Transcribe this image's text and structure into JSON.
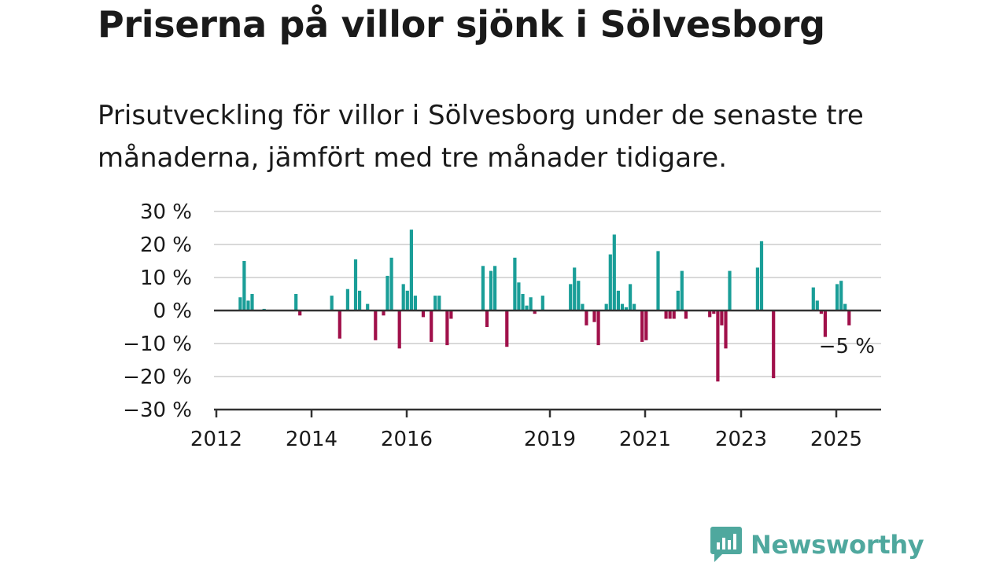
{
  "title": "Priserna på villor sjönk i Sölvesborg",
  "subtitle": "Prisutveckling för villor i Sölvesborg under de senaste tre månaderna, jämfört med tre månader tidigare.",
  "brand": {
    "name": "Newsworthy",
    "color": "#4fa89e",
    "icon": "newsworthy-chart-bubble-icon"
  },
  "colors": {
    "positive": "#1a9e98",
    "negative": "#a0104a",
    "grid": "#d9d9d9",
    "axis": "#333333"
  },
  "chart_data": {
    "type": "bar",
    "title": "",
    "xlabel": "",
    "ylabel": "",
    "ylim": [
      -30,
      30
    ],
    "y_ticks": [
      30,
      20,
      10,
      0,
      -10,
      -20,
      -30
    ],
    "y_tick_labels": [
      "30 %",
      "20 %",
      "10 %",
      "0 %",
      "−10 %",
      "−20 %",
      "−30 %"
    ],
    "x_ticks": [
      2012,
      2014,
      2016,
      2019,
      2021,
      2023,
      2025
    ],
    "x_tick_labels": [
      "2012",
      "2014",
      "2016",
      "2019",
      "2021",
      "2023",
      "2025"
    ],
    "xlim": [
      "2012-01",
      "2025-12"
    ],
    "grid": true,
    "annotation": {
      "text": "−5 %",
      "x": "2025-04",
      "value": -5
    },
    "x": [
      "2012-07",
      "2012-08",
      "2012-09",
      "2012-10",
      "2013-01",
      "2013-09",
      "2013-10",
      "2014-06",
      "2014-08",
      "2014-10",
      "2014-12",
      "2015-01",
      "2015-03",
      "2015-05",
      "2015-07",
      "2015-08",
      "2015-09",
      "2015-11",
      "2015-12",
      "2016-01",
      "2016-02",
      "2016-03",
      "2016-05",
      "2016-07",
      "2016-08",
      "2016-09",
      "2016-11",
      "2016-12",
      "2017-08",
      "2017-09",
      "2017-10",
      "2017-11",
      "2018-02",
      "2018-04",
      "2018-05",
      "2018-06",
      "2018-07",
      "2018-08",
      "2018-09",
      "2018-11",
      "2019-06",
      "2019-07",
      "2019-08",
      "2019-09",
      "2019-10",
      "2019-12",
      "2020-01",
      "2020-03",
      "2020-04",
      "2020-05",
      "2020-06",
      "2020-07",
      "2020-08",
      "2020-09",
      "2020-10",
      "2020-12",
      "2021-01",
      "2021-04",
      "2021-06",
      "2021-07",
      "2021-08",
      "2021-09",
      "2021-10",
      "2021-11",
      "2022-05",
      "2022-06",
      "2022-07",
      "2022-08",
      "2022-09",
      "2022-10",
      "2023-05",
      "2023-06",
      "2023-09",
      "2024-07",
      "2024-08",
      "2024-09",
      "2024-10",
      "2025-01",
      "2025-02",
      "2025-03",
      "2025-04"
    ],
    "series": [
      {
        "values": [
          4,
          15,
          3,
          5,
          0.5,
          5,
          -1.5,
          4.5,
          -8.5,
          6.5,
          15.5,
          6,
          2,
          -9,
          -1.5,
          10.5,
          16,
          -11.5,
          8,
          6,
          24.5,
          4.5,
          -2,
          -9.5,
          4.5,
          4.5,
          -10.5,
          -2.5,
          13.5,
          -5,
          12,
          13.5,
          -11,
          16,
          8.5,
          5,
          1.5,
          4,
          -1,
          4.5,
          8,
          13,
          9,
          2,
          -4.5,
          -3.5,
          -10.5,
          2,
          17,
          23,
          6,
          2,
          1,
          8,
          2,
          -9.5,
          -9,
          18,
          -2.5,
          -2.5,
          -2.5,
          6,
          12,
          -2.5,
          -2,
          -1,
          -21.5,
          -4.5,
          -11.5,
          12,
          13,
          21,
          -20.5,
          7,
          3,
          -1,
          -8,
          8,
          9,
          2,
          -4.5
        ]
      }
    ]
  }
}
